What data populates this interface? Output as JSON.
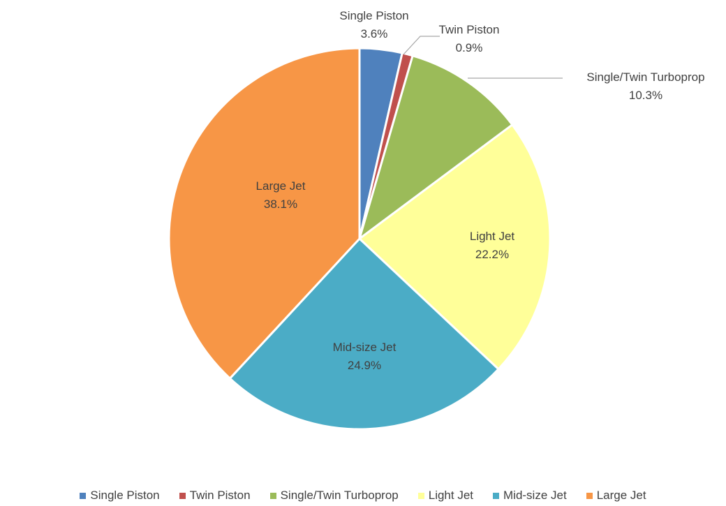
{
  "chart_data": {
    "type": "pie",
    "title": "",
    "slices": [
      {
        "label": "Single Piston",
        "value": 3.6,
        "value_label": "3.6%",
        "color": "#4f81bd"
      },
      {
        "label": "Twin Piston",
        "value": 0.9,
        "value_label": "0.9%",
        "color": "#c0504d"
      },
      {
        "label": "Single/Twin Turboprop",
        "value": 10.3,
        "value_label": "10.3%",
        "color": "#9bbb59"
      },
      {
        "label": "Light Jet",
        "value": 22.2,
        "value_label": "22.2%",
        "color": "#ffff99"
      },
      {
        "label": "Mid-size Jet",
        "value": 24.9,
        "value_label": "24.9%",
        "color": "#4bacc6"
      },
      {
        "label": "Large Jet",
        "value": 38.1,
        "value_label": "38.1%",
        "color": "#f79646"
      }
    ],
    "legend_position": "bottom",
    "start_angle": "top, clockwise"
  }
}
